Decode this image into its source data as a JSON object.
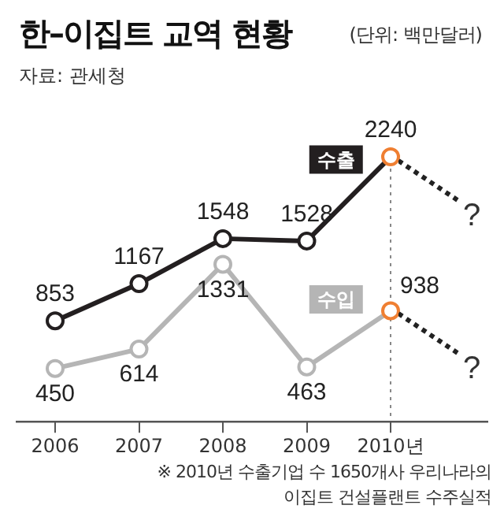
{
  "chart_data": {
    "type": "line",
    "title": "한–이집트 교역 현황",
    "subtitle": "자료: 관세청",
    "categories": [
      "2006",
      "2007",
      "2008",
      "2009",
      "2010년"
    ],
    "series": [
      {
        "name": "수출",
        "color": "#231f20",
        "colors": [
          "#231f20",
          "#231f20",
          "#231f20",
          "#231f20",
          "#ef7f32"
        ],
        "values": [
          853,
          1167,
          1548,
          1528,
          2240
        ]
      },
      {
        "name": "수입",
        "color": "#b5b5b5",
        "colors": [
          "#b5b5b5",
          "#b5b5b5",
          "#b5b5b5",
          "#b5b5b5",
          "#ef7f32"
        ],
        "values": [
          450,
          614,
          1331,
          463,
          938
        ]
      }
    ],
    "tick_labels": "x",
    "marker": "circle",
    "line_style": "solid",
    "legend": false,
    "data_labels": true,
    "ref_lines": [
      {
        "axis": "x",
        "value": "2010년",
        "color": "#888888",
        "line_style": "dotted"
      }
    ],
    "annotations": [
      "?",
      "?",
      "(단위: 백만달러)",
      "※ 2010년 수출기업 수 1650개사 우리나라의 이집트 건설플랜트 수주실적"
    ]
  }
}
